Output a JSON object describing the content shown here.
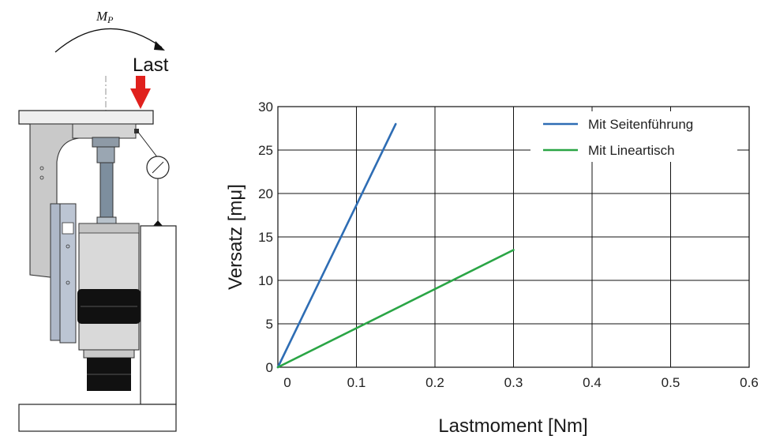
{
  "diagram": {
    "moment_symbol": "M",
    "moment_subscript": "P",
    "load_label": "Last",
    "arrow_color": "#e0211d"
  },
  "chart_data": {
    "type": "line",
    "xlabel": "Lastmoment [Nm]",
    "ylabel": "Versatz [mμ]",
    "xlim": [
      0,
      0.6
    ],
    "ylim": [
      0,
      30
    ],
    "x_ticks": [
      "0",
      "0.1",
      "0.2",
      "0.3",
      "0.4",
      "0.5",
      "0.6"
    ],
    "y_ticks": [
      "0",
      "5",
      "10",
      "15",
      "20",
      "25",
      "30"
    ],
    "grid": true,
    "legend_position": "top-right",
    "series": [
      {
        "name": "Mit Seitenführung",
        "color": "#2e6db4",
        "x": [
          0,
          0.15
        ],
        "y": [
          0,
          28
        ]
      },
      {
        "name": "Mit Lineartisch",
        "color": "#2aa545",
        "x": [
          0,
          0.3
        ],
        "y": [
          0,
          13.5
        ]
      }
    ]
  }
}
